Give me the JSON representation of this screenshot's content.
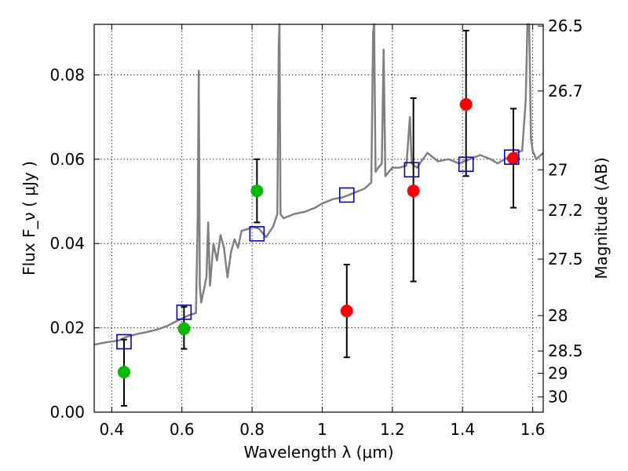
{
  "chart_data": {
    "type": "scatter",
    "xlabel": "Wavelength  λ (μm)",
    "ylabel": "Flux  F_ν  ( μJy )",
    "ylabel_right": "Magnitude (AB)",
    "xlim": [
      0.35,
      1.63
    ],
    "ylim": [
      0.0,
      0.092
    ],
    "grid": true,
    "x_ticks": [
      {
        "value": 0.4,
        "label": "0.4"
      },
      {
        "value": 0.6,
        "label": "0.6"
      },
      {
        "value": 0.8,
        "label": "0.8"
      },
      {
        "value": 1.0,
        "label": "1"
      },
      {
        "value": 1.2,
        "label": "1.2"
      },
      {
        "value": 1.4,
        "label": "1.4"
      },
      {
        "value": 1.6,
        "label": "1.6"
      }
    ],
    "y_ticks": [
      {
        "value": 0.0,
        "label": "0.00"
      },
      {
        "value": 0.02,
        "label": "0.02"
      },
      {
        "value": 0.04,
        "label": "0.04"
      },
      {
        "value": 0.06,
        "label": "0.06"
      },
      {
        "value": 0.08,
        "label": "0.08"
      }
    ],
    "mag_ticks": [
      {
        "value": 0.0916,
        "label": "26.5"
      },
      {
        "value": 0.0762,
        "label": "26.7"
      },
      {
        "value": 0.0575,
        "label": "27"
      },
      {
        "value": 0.0479,
        "label": "27.2"
      },
      {
        "value": 0.0363,
        "label": "27.5"
      },
      {
        "value": 0.0229,
        "label": "28"
      },
      {
        "value": 0.0145,
        "label": "28.5"
      },
      {
        "value": 0.0092,
        "label": "29"
      },
      {
        "value": 0.0036,
        "label": "30"
      }
    ],
    "series": [
      {
        "marker": "circle",
        "color": "#00bb00",
        "points": [
          {
            "x": 0.435,
            "y": 0.0095,
            "err_low": 0.0015,
            "err_high": 0.0172
          },
          {
            "x": 0.606,
            "y": 0.0198,
            "err_low": 0.015,
            "err_high": 0.025
          },
          {
            "x": 0.814,
            "y": 0.0525,
            "err_low": 0.045,
            "err_high": 0.06
          }
        ]
      },
      {
        "marker": "circle",
        "color": "#ff0000",
        "points": [
          {
            "x": 1.07,
            "y": 0.024,
            "err_low": 0.013,
            "err_high": 0.035
          },
          {
            "x": 1.26,
            "y": 0.0525,
            "err_low": 0.031,
            "err_high": 0.0745
          },
          {
            "x": 1.41,
            "y": 0.073,
            "err_low": 0.056,
            "err_high": 0.0905
          },
          {
            "x": 1.545,
            "y": 0.0602,
            "err_low": 0.0485,
            "err_high": 0.072
          }
        ]
      },
      {
        "marker": "square",
        "color": "#0000cc",
        "points": [
          {
            "x": 0.435,
            "y": 0.0167
          },
          {
            "x": 0.606,
            "y": 0.0237
          },
          {
            "x": 0.814,
            "y": 0.0423
          },
          {
            "x": 1.07,
            "y": 0.0515
          },
          {
            "x": 1.255,
            "y": 0.0575
          },
          {
            "x": 1.41,
            "y": 0.0588
          },
          {
            "x": 1.54,
            "y": 0.0605
          }
        ]
      },
      {
        "type": "line",
        "color": "#808080",
        "points": [
          [
            0.35,
            0.016
          ],
          [
            0.38,
            0.0165
          ],
          [
            0.42,
            0.017
          ],
          [
            0.44,
            0.0178
          ],
          [
            0.47,
            0.0185
          ],
          [
            0.5,
            0.019
          ],
          [
            0.53,
            0.0196
          ],
          [
            0.56,
            0.0205
          ],
          [
            0.59,
            0.0218
          ],
          [
            0.62,
            0.023
          ],
          [
            0.64,
            0.0235
          ],
          [
            0.645,
            0.045
          ],
          [
            0.648,
            0.081
          ],
          [
            0.651,
            0.03
          ],
          [
            0.655,
            0.026
          ],
          [
            0.66,
            0.028
          ],
          [
            0.67,
            0.032
          ],
          [
            0.675,
            0.045
          ],
          [
            0.68,
            0.03
          ],
          [
            0.69,
            0.04
          ],
          [
            0.7,
            0.036
          ],
          [
            0.71,
            0.042
          ],
          [
            0.72,
            0.039
          ],
          [
            0.73,
            0.032
          ],
          [
            0.74,
            0.038
          ],
          [
            0.75,
            0.041
          ],
          [
            0.76,
            0.039
          ],
          [
            0.77,
            0.043
          ],
          [
            0.79,
            0.0435
          ],
          [
            0.8,
            0.044
          ],
          [
            0.82,
            0.0435
          ],
          [
            0.84,
            0.0415
          ],
          [
            0.86,
            0.044
          ],
          [
            0.872,
            0.047
          ],
          [
            0.876,
            0.087
          ],
          [
            0.878,
            0.092
          ],
          [
            0.881,
            0.047
          ],
          [
            0.89,
            0.046
          ],
          [
            0.92,
            0.047
          ],
          [
            0.95,
            0.0475
          ],
          [
            0.98,
            0.0485
          ],
          [
            1.0,
            0.0495
          ],
          [
            1.03,
            0.0505
          ],
          [
            1.06,
            0.051
          ],
          [
            1.09,
            0.052
          ],
          [
            1.12,
            0.053
          ],
          [
            1.14,
            0.0545
          ],
          [
            1.145,
            0.09
          ],
          [
            1.148,
            0.092
          ],
          [
            1.152,
            0.057
          ],
          [
            1.16,
            0.058
          ],
          [
            1.17,
            0.059
          ],
          [
            1.175,
            0.086
          ],
          [
            1.18,
            0.056
          ],
          [
            1.2,
            0.058
          ],
          [
            1.22,
            0.058
          ],
          [
            1.24,
            0.0585
          ],
          [
            1.25,
            0.07
          ],
          [
            1.255,
            0.059
          ],
          [
            1.27,
            0.058
          ],
          [
            1.3,
            0.0615
          ],
          [
            1.33,
            0.0595
          ],
          [
            1.36,
            0.06
          ],
          [
            1.39,
            0.059
          ],
          [
            1.42,
            0.06
          ],
          [
            1.45,
            0.061
          ],
          [
            1.48,
            0.06
          ],
          [
            1.5,
            0.059
          ],
          [
            1.52,
            0.06
          ],
          [
            1.55,
            0.0615
          ],
          [
            1.57,
            0.062
          ],
          [
            1.58,
            0.074
          ],
          [
            1.585,
            0.092
          ],
          [
            1.59,
            0.092
          ],
          [
            1.595,
            0.065
          ],
          [
            1.6,
            0.062
          ],
          [
            1.61,
            0.06
          ],
          [
            1.63,
            0.0615
          ]
        ]
      }
    ]
  }
}
